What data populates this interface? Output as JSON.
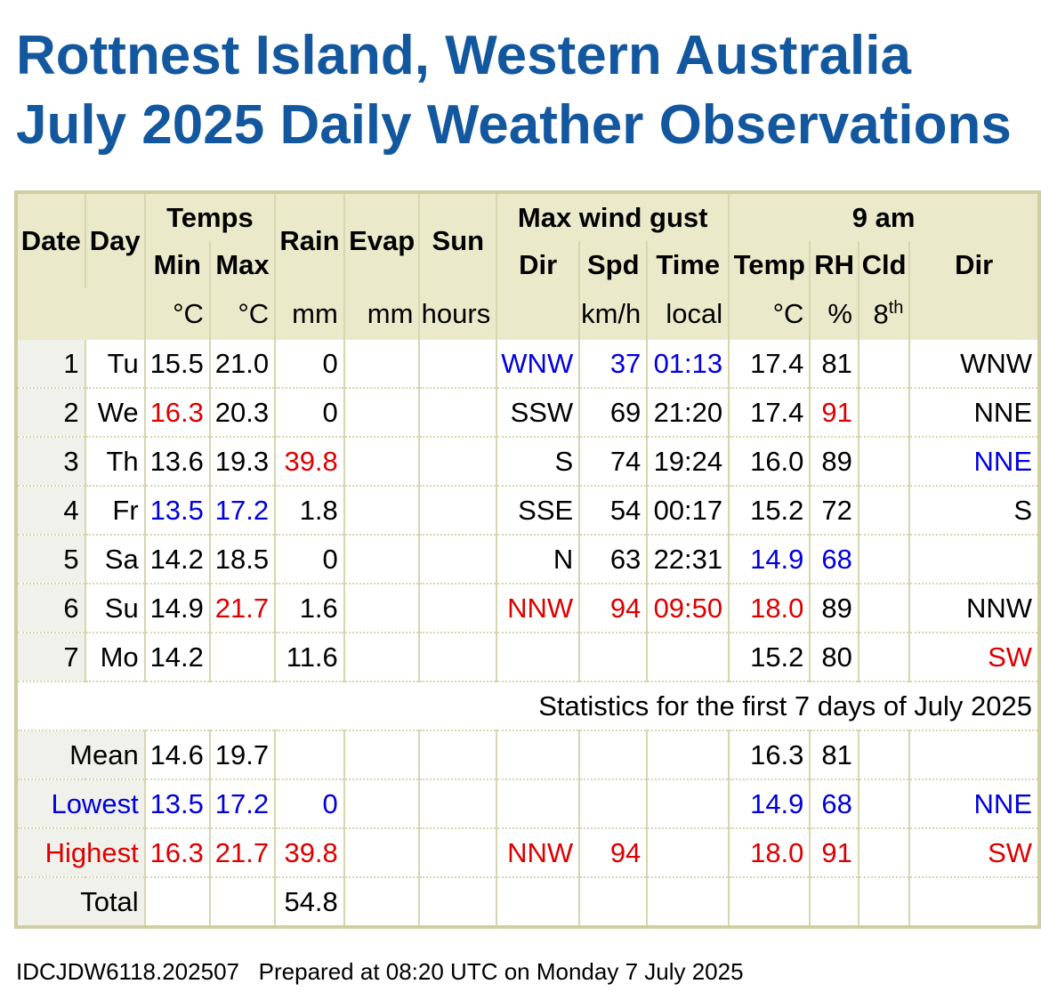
{
  "header": {
    "title_line1": "Rottnest Island, Western Australia",
    "title_line2": "July 2025 Daily Weather Observations"
  },
  "table": {
    "header_row1": [
      "Date",
      "Day",
      "Temps",
      "Rain",
      "Evap",
      "Sun",
      "Max wind gust",
      "9 am"
    ],
    "header_row2": [
      "Min",
      "Max",
      "Dir",
      "Spd",
      "Time",
      "Temp",
      "RH",
      "Cld",
      "Dir"
    ],
    "units": [
      "°C",
      "°C",
      "mm",
      "mm",
      "hours",
      null,
      "km/h",
      "local",
      "°C",
      "%",
      {
        "base": "8",
        "sup": "th"
      },
      null
    ],
    "rows": [
      [
        "1",
        "Tu",
        "15.5",
        "21.0",
        "0",
        null,
        null,
        {
          "text": "WNW",
          "color": "#0000dd"
        },
        {
          "text": "37",
          "color": "#0000dd"
        },
        {
          "text": "01:13",
          "color": "#0000dd"
        },
        "17.4",
        "81",
        null,
        "WNW"
      ],
      [
        "2",
        "We",
        {
          "text": "16.3",
          "color": "#dd0000"
        },
        "20.3",
        "0",
        null,
        null,
        "SSW",
        "69",
        "21:20",
        "17.4",
        {
          "text": "91",
          "color": "#dd0000"
        },
        null,
        "NNE"
      ],
      [
        "3",
        "Th",
        "13.6",
        "19.3",
        {
          "text": "39.8",
          "color": "#dd0000"
        },
        null,
        null,
        "S",
        "74",
        "19:24",
        "16.0",
        "89",
        null,
        {
          "text": "NNE",
          "color": "#0000dd"
        }
      ],
      [
        "4",
        "Fr",
        {
          "text": "13.5",
          "color": "#0000dd"
        },
        {
          "text": "17.2",
          "color": "#0000dd"
        },
        "1.8",
        null,
        null,
        "SSE",
        "54",
        "00:17",
        "15.2",
        "72",
        null,
        "S"
      ],
      [
        "5",
        "Sa",
        "14.2",
        "18.5",
        "0",
        null,
        null,
        "N",
        "63",
        "22:31",
        {
          "text": "14.9",
          "color": "#0000dd"
        },
        {
          "text": "68",
          "color": "#0000dd"
        },
        null,
        null
      ],
      [
        "6",
        "Su",
        "14.9",
        {
          "text": "21.7",
          "color": "#dd0000"
        },
        "1.6",
        null,
        null,
        {
          "text": "NNW",
          "color": "#dd0000"
        },
        {
          "text": "94",
          "color": "#dd0000"
        },
        {
          "text": "09:50",
          "color": "#dd0000"
        },
        {
          "text": "18.0",
          "color": "#dd0000"
        },
        "89",
        null,
        "NNW"
      ],
      [
        "7",
        "Mo",
        "14.2",
        null,
        "11.6",
        null,
        null,
        null,
        null,
        null,
        "15.2",
        "80",
        null,
        {
          "text": "SW",
          "color": "#dd0000"
        }
      ]
    ],
    "stats_title": "Statistics for the first 7 days of July 2025",
    "stats": [
      {
        "label": "Mean",
        "cells": [
          "14.6",
          "19.7",
          null,
          null,
          null,
          null,
          null,
          null,
          "16.3",
          "81",
          null,
          null
        ]
      },
      {
        "label": "Lowest",
        "color": "#0000dd",
        "cells": [
          "13.5",
          "17.2",
          "0",
          null,
          null,
          null,
          null,
          null,
          "14.9",
          "68",
          null,
          "NNE"
        ]
      },
      {
        "label": "Highest",
        "color": "#dd0000",
        "cells": [
          "16.3",
          "21.7",
          "39.8",
          null,
          null,
          "NNW",
          "94",
          null,
          "18.0",
          "91",
          null,
          "SW"
        ]
      },
      {
        "label": "Total",
        "cells": [
          null,
          null,
          "54.8",
          null,
          null,
          null,
          null,
          null,
          null,
          null,
          null,
          null
        ]
      }
    ]
  },
  "footer": {
    "id": "IDCJDW6118.202507",
    "prepared": "Prepared at 08:20 UTC on Monday 7 July 2025"
  }
}
